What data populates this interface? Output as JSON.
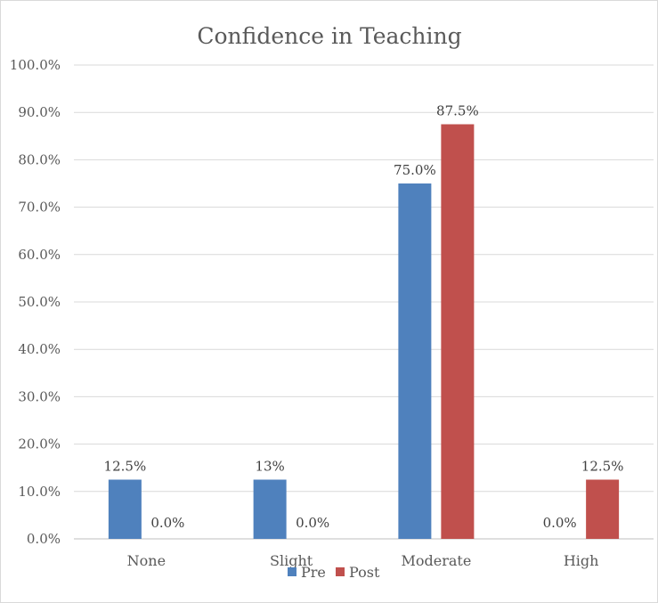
{
  "chart_data": {
    "type": "bar",
    "title": "Confidence in Teaching",
    "xlabel": "",
    "ylabel": "",
    "categories": [
      "None",
      "Slight",
      "Moderate",
      "High"
    ],
    "y_ticks": [
      "0.0%",
      "10.0%",
      "20.0%",
      "30.0%",
      "40.0%",
      "50.0%",
      "60.0%",
      "70.0%",
      "80.0%",
      "90.0%",
      "100.0%"
    ],
    "ylim": [
      0,
      100
    ],
    "grid": true,
    "legend_position": "bottom",
    "series": [
      {
        "name": "Pre",
        "color": "#4F81BD",
        "values": [
          12.5,
          12.5,
          75.0,
          0.0
        ],
        "data_labels": [
          "12.5%",
          "13%",
          "75.0%",
          "0.0%"
        ]
      },
      {
        "name": "Post",
        "color": "#C0504D",
        "values": [
          0.0,
          0.0,
          87.5,
          12.5
        ],
        "data_labels": [
          "0.0%",
          "0.0%",
          "87.5%",
          "12.5%"
        ]
      }
    ]
  }
}
